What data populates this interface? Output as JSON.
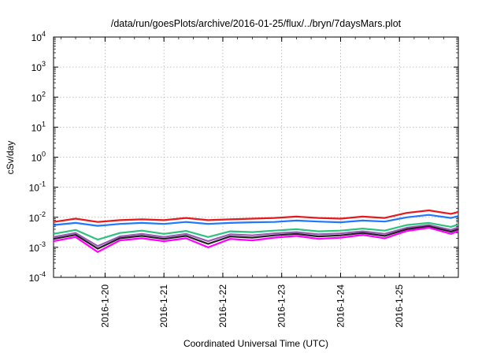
{
  "chart_data": {
    "type": "line",
    "title": "/data/run/goesPlots/archive/2016-01-25/flux/../bryn/7daysMars.plot",
    "xlabel": "Coordinated Universal Time (UTC)",
    "ylabel": "cSv/day",
    "y_scale": "log",
    "ylim": [
      0.0001,
      10000
    ],
    "y_ticks": [
      {
        "value": 0.0001,
        "base": "10",
        "exp": "-4"
      },
      {
        "value": 0.001,
        "base": "10",
        "exp": "-3"
      },
      {
        "value": 0.01,
        "base": "10",
        "exp": "-2"
      },
      {
        "value": 0.1,
        "base": "10",
        "exp": "-1"
      },
      {
        "value": 1,
        "base": "10",
        "exp": "0"
      },
      {
        "value": 10,
        "base": "10",
        "exp": "1"
      },
      {
        "value": 100,
        "base": "10",
        "exp": "2"
      },
      {
        "value": 1000,
        "base": "10",
        "exp": "3"
      },
      {
        "value": 10000,
        "base": "10",
        "exp": "4"
      }
    ],
    "xlim": [
      "2016-01-19 03:00",
      "2016-01-26 00:00"
    ],
    "x_ticks": [
      "2016-1-20",
      "2016-1-21",
      "2016-1-22",
      "2016-1-23",
      "2016-1-24",
      "2016-1-25"
    ],
    "grid": true,
    "series": [
      {
        "color": "#e41a1c",
        "x": [
          "2016-01-19 03:00",
          "2016-01-19 12:00",
          "2016-01-19 21:00",
          "2016-01-20 06:00",
          "2016-01-20 15:00",
          "2016-01-21 00:00",
          "2016-01-21 09:00",
          "2016-01-21 18:00",
          "2016-01-22 03:00",
          "2016-01-22 12:00",
          "2016-01-22 21:00",
          "2016-01-23 06:00",
          "2016-01-23 15:00",
          "2016-01-24 00:00",
          "2016-01-24 09:00",
          "2016-01-24 18:00",
          "2016-01-25 03:00",
          "2016-01-25 12:00",
          "2016-01-25 21:00",
          "2016-01-26 00:00"
        ],
        "values": [
          0.007,
          0.009,
          0.007,
          0.008,
          0.0085,
          0.008,
          0.0095,
          0.008,
          0.0085,
          0.009,
          0.0095,
          0.0105,
          0.0095,
          0.009,
          0.0105,
          0.0095,
          0.014,
          0.017,
          0.013,
          0.015
        ]
      },
      {
        "color": "#1f78ff",
        "x": [
          "2016-01-19 03:00",
          "2016-01-19 12:00",
          "2016-01-19 21:00",
          "2016-01-20 06:00",
          "2016-01-20 15:00",
          "2016-01-21 00:00",
          "2016-01-21 09:00",
          "2016-01-21 18:00",
          "2016-01-22 03:00",
          "2016-01-22 12:00",
          "2016-01-22 21:00",
          "2016-01-23 06:00",
          "2016-01-23 15:00",
          "2016-01-24 00:00",
          "2016-01-24 09:00",
          "2016-01-24 18:00",
          "2016-01-25 03:00",
          "2016-01-25 12:00",
          "2016-01-25 21:00",
          "2016-01-26 00:00"
        ],
        "values": [
          0.0055,
          0.0065,
          0.0052,
          0.006,
          0.0065,
          0.006,
          0.007,
          0.006,
          0.0065,
          0.0068,
          0.007,
          0.0078,
          0.0072,
          0.0068,
          0.0078,
          0.0072,
          0.01,
          0.012,
          0.0095,
          0.011
        ]
      },
      {
        "color": "#2ec27e",
        "x": [
          "2016-01-19 03:00",
          "2016-01-19 12:00",
          "2016-01-19 21:00",
          "2016-01-20 06:00",
          "2016-01-20 15:00",
          "2016-01-21 00:00",
          "2016-01-21 09:00",
          "2016-01-21 18:00",
          "2016-01-22 03:00",
          "2016-01-22 12:00",
          "2016-01-22 21:00",
          "2016-01-23 06:00",
          "2016-01-23 15:00",
          "2016-01-24 00:00",
          "2016-01-24 09:00",
          "2016-01-24 18:00",
          "2016-01-25 03:00",
          "2016-01-25 12:00",
          "2016-01-25 21:00",
          "2016-01-26 00:00"
        ],
        "values": [
          0.0028,
          0.0038,
          0.0018,
          0.003,
          0.0036,
          0.0028,
          0.0035,
          0.0022,
          0.0034,
          0.0032,
          0.0036,
          0.004,
          0.0034,
          0.0036,
          0.0042,
          0.0036,
          0.0055,
          0.0065,
          0.0048,
          0.0058
        ]
      },
      {
        "color": "#9b59b6",
        "x": [
          "2016-01-19 03:00",
          "2016-01-19 12:00",
          "2016-01-19 21:00",
          "2016-01-20 06:00",
          "2016-01-20 15:00",
          "2016-01-21 00:00",
          "2016-01-21 09:00",
          "2016-01-21 18:00",
          "2016-01-22 03:00",
          "2016-01-22 12:00",
          "2016-01-22 21:00",
          "2016-01-23 06:00",
          "2016-01-23 15:00",
          "2016-01-24 00:00",
          "2016-01-24 09:00",
          "2016-01-24 18:00",
          "2016-01-25 03:00",
          "2016-01-25 12:00",
          "2016-01-25 21:00",
          "2016-01-26 00:00"
        ],
        "values": [
          0.0022,
          0.003,
          0.0011,
          0.0023,
          0.0028,
          0.0022,
          0.0028,
          0.0016,
          0.0027,
          0.0025,
          0.0029,
          0.0032,
          0.0027,
          0.0029,
          0.0034,
          0.0028,
          0.0045,
          0.0055,
          0.0038,
          0.0046
        ]
      },
      {
        "color": "#222222",
        "x": [
          "2016-01-19 03:00",
          "2016-01-19 12:00",
          "2016-01-19 21:00",
          "2016-01-20 06:00",
          "2016-01-20 15:00",
          "2016-01-21 00:00",
          "2016-01-21 09:00",
          "2016-01-21 18:00",
          "2016-01-22 03:00",
          "2016-01-22 12:00",
          "2016-01-22 21:00",
          "2016-01-23 06:00",
          "2016-01-23 15:00",
          "2016-01-24 00:00",
          "2016-01-24 09:00",
          "2016-01-24 18:00",
          "2016-01-25 03:00",
          "2016-01-25 12:00",
          "2016-01-25 21:00",
          "2016-01-26 00:00"
        ],
        "values": [
          0.0019,
          0.0026,
          0.0009,
          0.002,
          0.0024,
          0.0019,
          0.0024,
          0.0013,
          0.0023,
          0.0021,
          0.0025,
          0.0028,
          0.0023,
          0.0025,
          0.003,
          0.0024,
          0.004,
          0.005,
          0.0033,
          0.004
        ]
      },
      {
        "color": "#ff00ff",
        "x": [
          "2016-01-19 03:00",
          "2016-01-19 12:00",
          "2016-01-19 21:00",
          "2016-01-20 06:00",
          "2016-01-20 15:00",
          "2016-01-21 00:00",
          "2016-01-21 09:00",
          "2016-01-21 18:00",
          "2016-01-22 03:00",
          "2016-01-22 12:00",
          "2016-01-22 21:00",
          "2016-01-23 06:00",
          "2016-01-23 15:00",
          "2016-01-24 00:00",
          "2016-01-24 09:00",
          "2016-01-24 18:00",
          "2016-01-25 03:00",
          "2016-01-25 12:00",
          "2016-01-25 21:00",
          "2016-01-26 00:00"
        ],
        "values": [
          0.0016,
          0.0022,
          0.0007,
          0.0017,
          0.002,
          0.0016,
          0.002,
          0.001,
          0.0019,
          0.0017,
          0.0021,
          0.0024,
          0.0019,
          0.0021,
          0.0026,
          0.002,
          0.0035,
          0.0045,
          0.0028,
          0.0035
        ]
      }
    ]
  }
}
